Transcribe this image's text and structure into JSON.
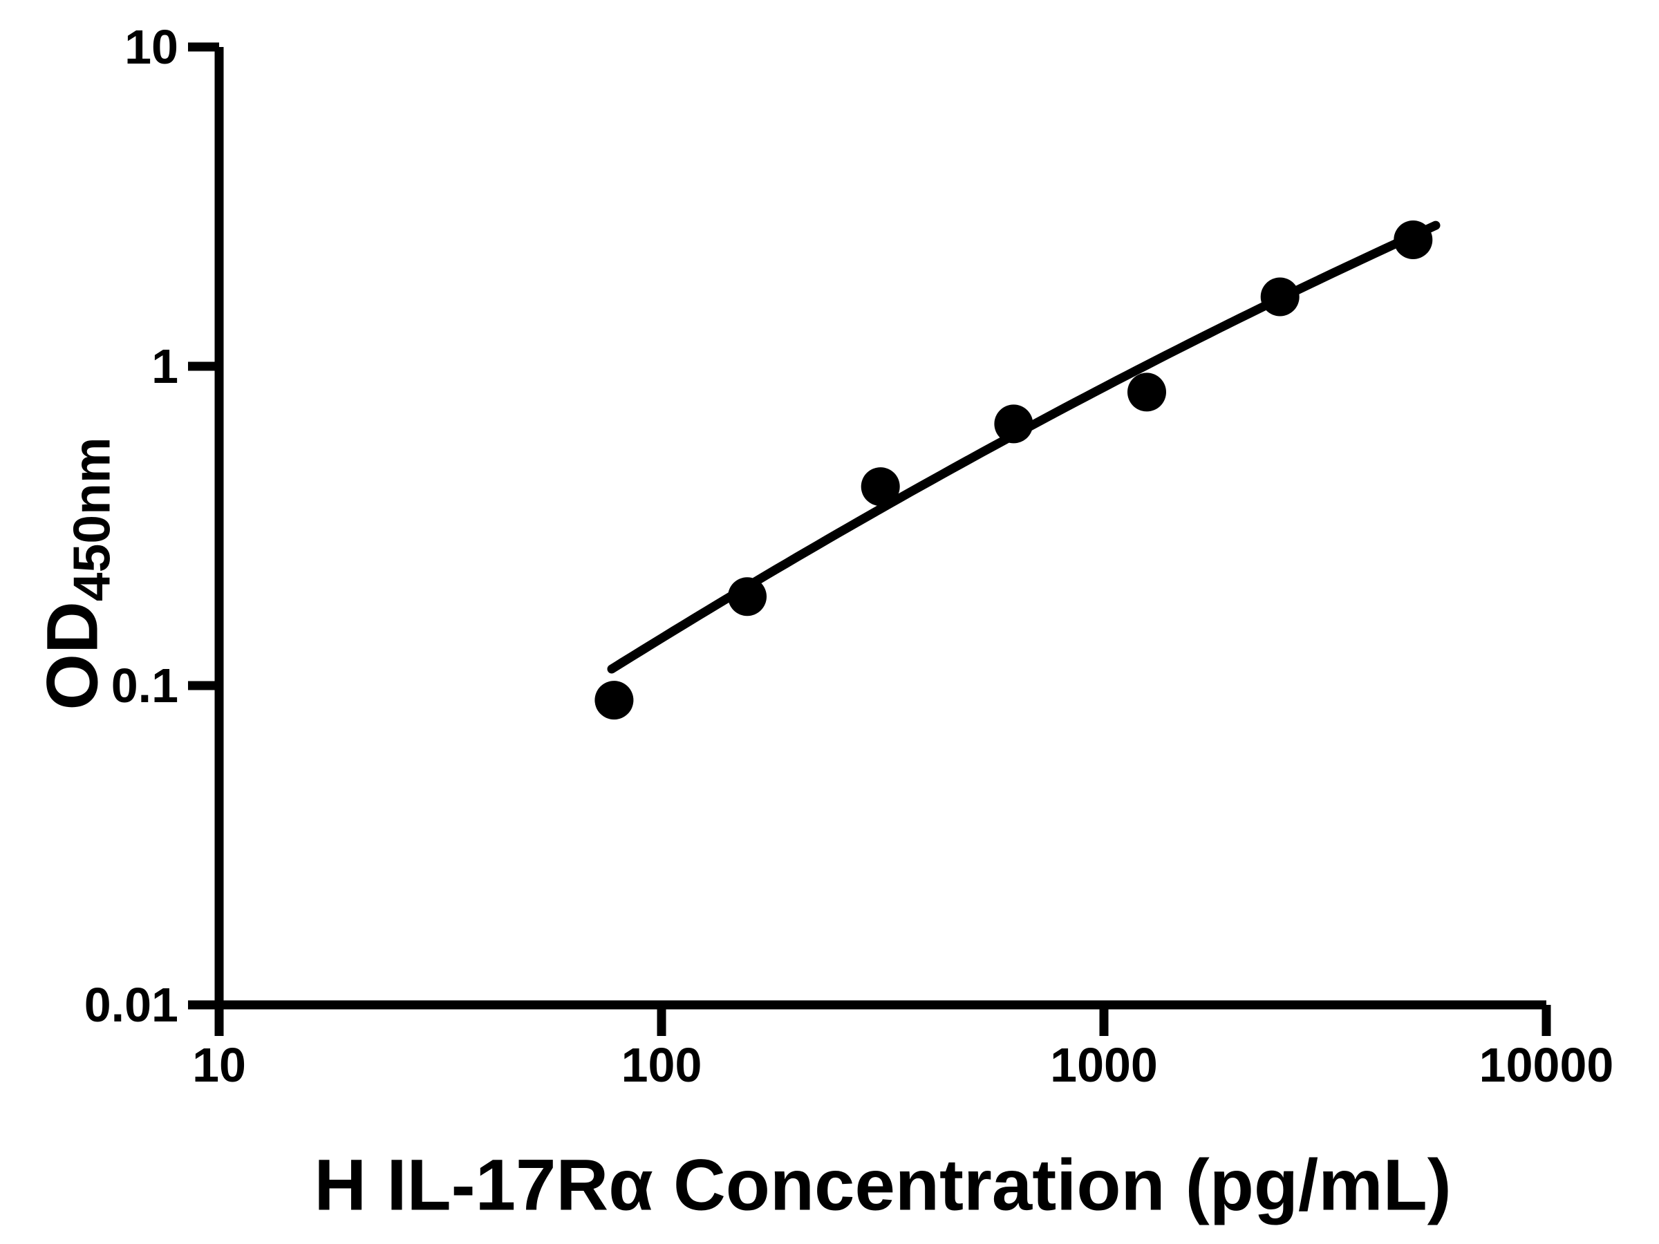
{
  "figure": {
    "background_color": "#ffffff",
    "axis_color": "#000000",
    "marker_color": "#000000",
    "curve_color": "#000000"
  },
  "chart_data": {
    "type": "scatter",
    "title": "",
    "xlabel": "H IL-17Rα Concentration (pg/mL)",
    "ylabel": "OD",
    "ylabel_subscript": "450nm",
    "xscale": "log",
    "yscale": "log",
    "xlim": [
      10,
      10000
    ],
    "ylim": [
      0.01,
      10
    ],
    "x_tick_labels": [
      "10",
      "100",
      "1000",
      "10000"
    ],
    "y_tick_labels": [
      "10",
      "1",
      "0.1",
      "0.01"
    ],
    "grid": false,
    "legend": null,
    "series": [
      {
        "name": "standard-curve-points",
        "marker": "circle",
        "color": "#000000",
        "x": [
          78.125,
          156.25,
          312.5,
          625,
          1250,
          2500,
          5000
        ],
        "y": [
          0.09,
          0.19,
          0.42,
          0.66,
          0.83,
          1.65,
          2.49
        ]
      }
    ],
    "fit_curve": {
      "name": "fitted-standard-curve",
      "model": "v = a + b*u + c*u^2 with u = log10(concentration), v = log10(OD)",
      "a": -2.8027,
      "b": 1.1017,
      "c": -0.0631,
      "u_start": 1.8875,
      "u_end": 3.75,
      "color": "#000000"
    }
  }
}
